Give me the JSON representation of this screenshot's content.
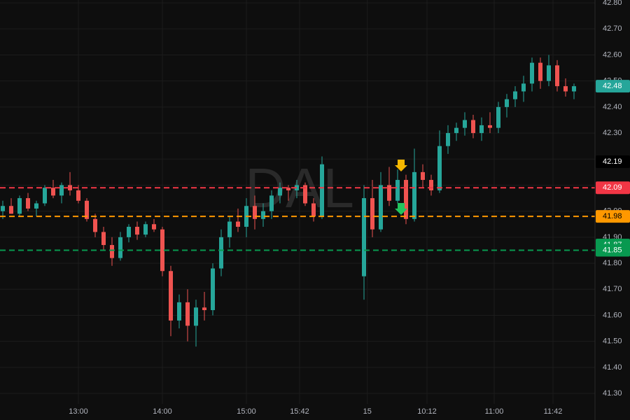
{
  "chart_data": {
    "type": "candlestick",
    "watermark": "DAL",
    "up_color": "#26a69a",
    "down_color": "#ef5350",
    "candles": [
      [
        42.0,
        42.04,
        41.97,
        42.02
      ],
      [
        42.02,
        42.05,
        41.99,
        41.99
      ],
      [
        41.99,
        42.06,
        41.98,
        42.05
      ],
      [
        42.05,
        42.07,
        42.0,
        42.01
      ],
      [
        42.01,
        42.04,
        41.98,
        42.03
      ],
      [
        42.03,
        42.1,
        42.02,
        42.09
      ],
      [
        42.09,
        42.12,
        42.05,
        42.06
      ],
      [
        42.06,
        42.11,
        42.03,
        42.1
      ],
      [
        42.1,
        42.15,
        42.06,
        42.08
      ],
      [
        42.08,
        42.1,
        42.03,
        42.04
      ],
      [
        42.04,
        42.05,
        41.96,
        41.97
      ],
      [
        41.97,
        41.99,
        41.9,
        41.92
      ],
      [
        41.92,
        41.94,
        41.85,
        41.87
      ],
      [
        41.87,
        41.9,
        41.79,
        41.82
      ],
      [
        41.82,
        41.92,
        41.81,
        41.9
      ],
      [
        41.9,
        41.95,
        41.88,
        41.94
      ],
      [
        41.94,
        41.96,
        41.89,
        41.91
      ],
      [
        41.91,
        41.96,
        41.9,
        41.95
      ],
      [
        41.95,
        41.97,
        41.92,
        41.93
      ],
      [
        41.93,
        41.94,
        41.75,
        41.77
      ],
      [
        41.77,
        41.79,
        41.52,
        41.58
      ],
      [
        41.58,
        41.68,
        41.55,
        41.65
      ],
      [
        41.65,
        41.7,
        41.5,
        41.56
      ],
      [
        41.56,
        41.66,
        41.48,
        41.63
      ],
      [
        41.63,
        41.69,
        41.58,
        41.62
      ],
      [
        41.62,
        41.8,
        41.6,
        41.78
      ],
      [
        41.78,
        41.93,
        41.75,
        41.9
      ],
      [
        41.9,
        41.98,
        41.86,
        41.96
      ],
      [
        41.96,
        42.01,
        41.92,
        41.94
      ],
      [
        41.94,
        42.05,
        41.9,
        42.02
      ],
      [
        42.02,
        42.06,
        41.93,
        41.97
      ],
      [
        41.97,
        42.03,
        41.94,
        42.0
      ],
      [
        42.0,
        42.08,
        41.97,
        42.06
      ],
      [
        42.06,
        42.11,
        42.03,
        42.09
      ],
      [
        42.09,
        42.1,
        42.04,
        42.08
      ],
      [
        42.08,
        42.12,
        42.05,
        42.1
      ],
      [
        42.1,
        42.11,
        42.02,
        42.03
      ],
      [
        42.03,
        42.05,
        41.96,
        41.98
      ],
      [
        41.98,
        42.21,
        41.97,
        42.18
      ],
      null,
      null,
      null,
      null,
      [
        41.75,
        42.1,
        41.66,
        42.05
      ],
      [
        42.05,
        42.12,
        41.9,
        41.93
      ],
      [
        41.93,
        42.15,
        41.92,
        42.1
      ],
      [
        42.1,
        42.17,
        42.02,
        42.04
      ],
      [
        42.04,
        42.16,
        42.03,
        42.12
      ],
      [
        42.12,
        42.14,
        41.95,
        41.97
      ],
      [
        41.97,
        42.24,
        41.96,
        42.15
      ],
      [
        42.15,
        42.18,
        42.09,
        42.12
      ],
      [
        42.12,
        42.14,
        42.06,
        42.08
      ],
      [
        42.08,
        42.31,
        42.07,
        42.25
      ],
      [
        42.25,
        42.33,
        42.22,
        42.3
      ],
      [
        42.3,
        42.34,
        42.27,
        42.32
      ],
      [
        42.32,
        42.38,
        42.29,
        42.35
      ],
      [
        42.35,
        42.37,
        42.28,
        42.3
      ],
      [
        42.3,
        42.36,
        42.27,
        42.33
      ],
      [
        42.33,
        42.38,
        42.3,
        42.32
      ],
      [
        42.32,
        42.42,
        42.3,
        42.4
      ],
      [
        42.4,
        42.45,
        42.36,
        42.43
      ],
      [
        42.43,
        42.48,
        42.4,
        42.46
      ],
      [
        42.46,
        42.52,
        42.42,
        42.49
      ],
      [
        42.49,
        42.59,
        42.46,
        42.57
      ],
      [
        42.57,
        42.59,
        42.47,
        42.5
      ],
      [
        42.5,
        42.6,
        42.48,
        42.56
      ],
      [
        42.56,
        42.58,
        42.46,
        42.48
      ],
      [
        42.48,
        42.51,
        42.44,
        42.46
      ],
      [
        42.46,
        42.49,
        42.43,
        42.48
      ]
    ],
    "ylim": [
      41.198,
      42.811
    ],
    "yticks": [
      {
        "value": 41.3,
        "label": "41.30"
      },
      {
        "value": 41.4,
        "label": "41.40"
      },
      {
        "value": 41.5,
        "label": "41.50"
      },
      {
        "value": 41.6,
        "label": "41.60"
      },
      {
        "value": 41.7,
        "label": "41.70"
      },
      {
        "value": 41.8,
        "label": "41.80"
      },
      {
        "value": 41.9,
        "label": "41.90"
      },
      {
        "value": 42.0,
        "label": "42.00"
      },
      {
        "value": 42.1,
        "label": "42.10"
      },
      {
        "value": 42.2,
        "label": "42.20"
      },
      {
        "value": 42.3,
        "label": "42.30"
      },
      {
        "value": 42.4,
        "label": "42.40"
      },
      {
        "value": 42.5,
        "label": "42.50"
      },
      {
        "value": 42.6,
        "label": "42.60"
      },
      {
        "value": 42.7,
        "label": "42.70"
      },
      {
        "value": 42.8,
        "label": "42.80"
      }
    ],
    "xticks": [
      {
        "value": 9,
        "label": "13:00"
      },
      {
        "value": 19,
        "label": "14:00"
      },
      {
        "value": 29,
        "label": "15:00"
      },
      {
        "value": 35.33,
        "label": "15:42"
      },
      {
        "value": 43.4,
        "label": "15"
      },
      {
        "value": 50.5,
        "label": "10:12"
      },
      {
        "value": 58.5,
        "label": "11:00"
      },
      {
        "value": 65.5,
        "label": "11:42"
      }
    ],
    "grid": true,
    "price_labels": [
      {
        "value": 42.48,
        "color": "#26a69a",
        "text_color": "#ffffff",
        "line": false
      },
      {
        "value": 42.19,
        "color": "#000000",
        "text_color": "#ffffff",
        "line": false
      },
      {
        "value": 42.09,
        "color": "#f23645",
        "text_color": "#ffffff",
        "line": true
      },
      {
        "value": 41.98,
        "color": "#ff9800",
        "text_color": "#000000",
        "line": true
      },
      {
        "value": 41.87,
        "color": "#089950",
        "text_color": "#ffffff",
        "line": false
      },
      {
        "value": 41.85,
        "color": "#089950",
        "text_color": "#ffffff",
        "line": true
      }
    ]
  }
}
